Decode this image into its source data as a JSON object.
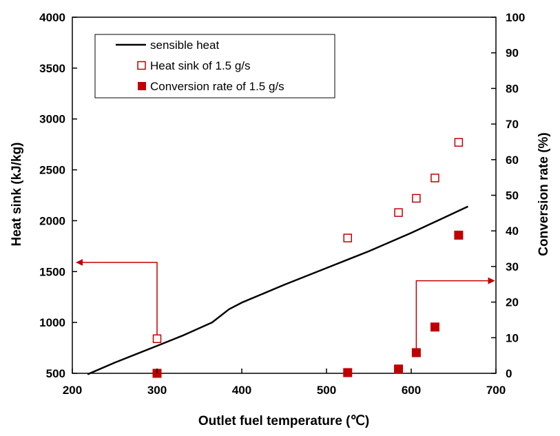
{
  "chart_data": {
    "type": "scatter",
    "title": "",
    "xlabel": "Outlet fuel temperature (℃)",
    "ylabel": "Heat sink (kJ/kg)",
    "y2label": "Conversion rate (%)",
    "xlim": [
      200,
      700
    ],
    "ylim": [
      500,
      4000
    ],
    "y2lim": [
      0,
      100
    ],
    "x_ticks": [
      "200",
      "300",
      "400",
      "500",
      "600",
      "700"
    ],
    "y_ticks": [
      "500",
      "1000",
      "1500",
      "2000",
      "2500",
      "3000",
      "3500",
      "4000"
    ],
    "y2_ticks": [
      "0",
      "10",
      "20",
      "30",
      "40",
      "50",
      "60",
      "70",
      "80",
      "90",
      "100"
    ],
    "grid": false,
    "legend_position": "top-left",
    "series": [
      {
        "name": "sensible heat",
        "type": "line",
        "axis": "left",
        "color": "#000000",
        "x": [
          218,
          250,
          300,
          330,
          365,
          385,
          400,
          450,
          500,
          550,
          600,
          667
        ],
        "y": [
          490,
          605,
          770,
          870,
          1000,
          1130,
          1195,
          1370,
          1535,
          1700,
          1880,
          2140
        ]
      },
      {
        "name": "Heat sink of 1.5 g/s",
        "type": "scatter",
        "marker": "open-square",
        "axis": "left",
        "color": "#c00000",
        "x": [
          300,
          525,
          585,
          606,
          628,
          656
        ],
        "y": [
          840,
          1830,
          2080,
          2220,
          2420,
          2770
        ]
      },
      {
        "name": "Conversion rate of 1.5 g/s",
        "type": "scatter",
        "marker": "filled-square",
        "axis": "right",
        "color": "#c00000",
        "x": [
          300,
          525,
          585,
          606,
          628,
          656
        ],
        "y": [
          0,
          0.2,
          1.2,
          5.8,
          13,
          38.8
        ]
      }
    ],
    "annotations": [
      {
        "type": "arrow",
        "target_axis": "left",
        "color": "#c00000",
        "from": [
          300,
          840
        ],
        "corner": [
          300,
          1590
        ],
        "to": [
          205,
          1590
        ]
      },
      {
        "type": "arrow",
        "target_axis": "right",
        "color": "#c00000",
        "from": [
          606,
          5.8
        ],
        "corner": [
          606,
          26
        ],
        "to": [
          698,
          26
        ]
      }
    ]
  }
}
